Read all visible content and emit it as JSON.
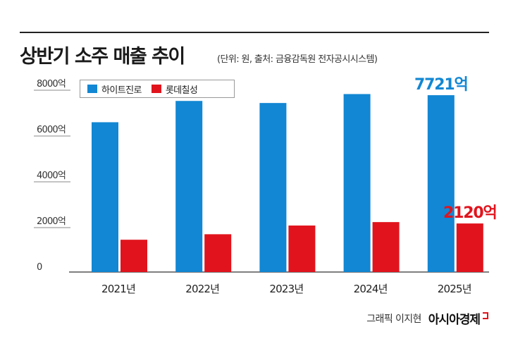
{
  "title": "상반기 소주 매출 추이",
  "subtitle": "(단위: 원, 출처: 금융감독원 전자공시시스템)",
  "credit": "그래픽 이지현",
  "logo_text": "아시아경제",
  "colors": {
    "hite": "#1287d3",
    "lotte": "#e1141d",
    "axis": "#555555",
    "grid": "#dddddd"
  },
  "chart_data": {
    "type": "bar",
    "title": "상반기 소주 매출 추이",
    "categories": [
      "2021년",
      "2022년",
      "2023년",
      "2024년",
      "2025년"
    ],
    "series": [
      {
        "name": "하이트진로",
        "values": [
          6540,
          7470,
          7380,
          7770,
          7721
        ],
        "color": "#1287d3"
      },
      {
        "name": "롯데칠성",
        "values": [
          1410,
          1650,
          2030,
          2180,
          2120
        ],
        "color": "#e1141d"
      }
    ],
    "ylim": [
      0,
      8000
    ],
    "yticks": [
      "8000억",
      "6000억",
      "4000억",
      "2000억",
      "0"
    ],
    "ytick_values": [
      8000,
      6000,
      4000,
      2000,
      0
    ],
    "annotations": [
      {
        "text": "7721억",
        "series": 0,
        "index": 4,
        "color": "#1287d3"
      },
      {
        "text": "2120억",
        "series": 1,
        "index": 4,
        "color": "#e1141d"
      }
    ],
    "legend": "top-left",
    "grid": false
  }
}
